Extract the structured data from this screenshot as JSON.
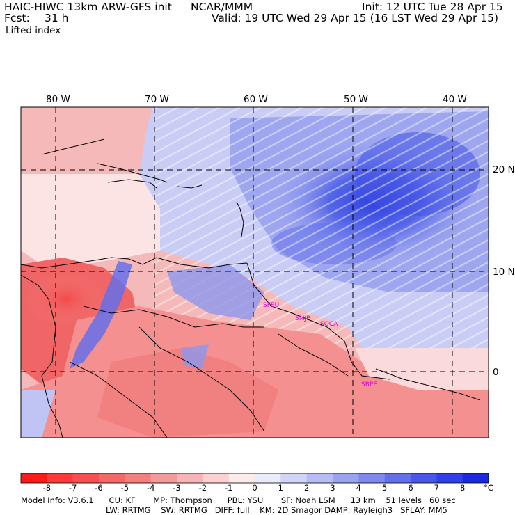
{
  "header": {
    "model": "HAIC-HIWC 13km ARW-GFS init",
    "org": "NCAR/MMM",
    "init": "Init: 12 UTC Tue 28 Apr 15",
    "fcst_label": "Fcst:",
    "fcst_value": "31 h",
    "valid": "Valid: 19 UTC Wed 29 Apr 15 (16 LST Wed 29 Apr 15)",
    "field": "Lifted index"
  },
  "map": {
    "lon_labels": [
      "80 W",
      "70 W",
      "60 W",
      "50 W",
      "40 W"
    ],
    "lat_labels": [
      "20 N",
      "10 N",
      "0"
    ],
    "station_labels": [
      "SFEU",
      "SMJP",
      "SOCA",
      "SBPE"
    ],
    "station_color": "#e000e0"
  },
  "legend": {
    "ticks": [
      "-8",
      "-7",
      "-6",
      "-5",
      "-4",
      "-3",
      "-2",
      "-1",
      "0",
      "1",
      "2",
      "3",
      "4",
      "5",
      "6",
      "7",
      "8"
    ],
    "unit": "°C",
    "colors": [
      "#ff1a1a",
      "#ff3a3a",
      "#f85050",
      "#f56868",
      "#f47f7f",
      "#f39a9a",
      "#f7b4b4",
      "#fad0d0",
      "#fdeaea",
      "#e9ebfb",
      "#d0d4f7",
      "#b7bdf3",
      "#9aa3f0",
      "#7f89ed",
      "#6470ea",
      "#4a56e8",
      "#3040e6",
      "#1a28e0"
    ]
  },
  "footer": {
    "line1": "Model Info: V3.6.1      CU: KF       MP: Thompson      PBL: YSU       SF: Noah LSM      13 km    51 levels   60 sec",
    "line2": "LW: RRTMG    SW: RRTMG   DIFF: full    KM: 2D Smagor DAMP: Rayleigh3   SFLAY: MM5"
  }
}
